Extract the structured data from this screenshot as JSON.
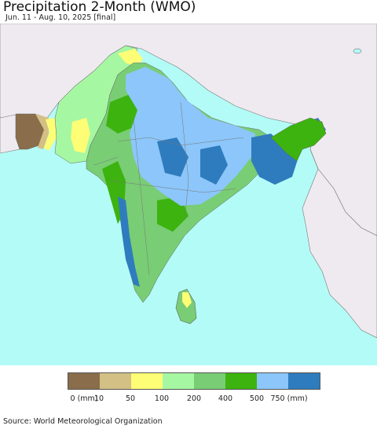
{
  "title": "Precipitation 2-Month (WMO)",
  "subtitle": "Jun. 11 - Aug. 10, 2025 [final]",
  "source": "Source: World Meteorological Organization",
  "colors": {
    "ocean": "#b3fbf7",
    "land_outside": "#efeaef",
    "class_0": "#8a6d4b",
    "class_10": "#d3c085",
    "class_50": "#fdfe75",
    "class_100": "#a6f7a2",
    "class_200": "#79cd75",
    "class_400": "#3db30f",
    "class_500": "#8cc6fa",
    "class_750": "#2e7cbd",
    "border": "#666666"
  },
  "legend": {
    "colors": [
      "#8a6d4b",
      "#d3c085",
      "#fdfe75",
      "#a6f7a2",
      "#79cd75",
      "#3db30f",
      "#8cc6fa",
      "#2e7cbd"
    ],
    "labels": [
      "0 (mm)",
      "10",
      "50",
      "100",
      "200",
      "400",
      "500",
      "750 (mm)"
    ]
  }
}
